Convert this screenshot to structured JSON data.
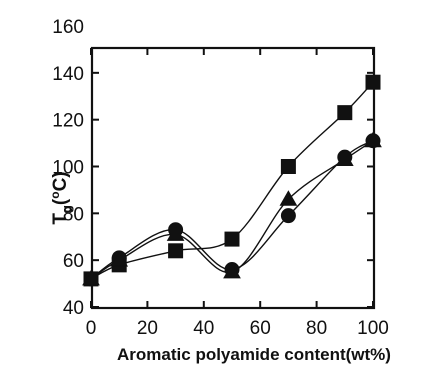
{
  "chart_data": {
    "type": "scatter",
    "xlabel": "Aromatic polyamide content(wt%)",
    "ylabel": {
      "main": "T",
      "sub": "g",
      "rest": "(",
      "sup": "o",
      "unit": "C)"
    },
    "xlim": [
      0,
      100
    ],
    "ylim": [
      40,
      160
    ],
    "xticks": [
      0,
      20,
      40,
      60,
      80,
      100
    ],
    "yticks": [
      40,
      60,
      80,
      100,
      120,
      140,
      160
    ],
    "grid": false,
    "legend": "none",
    "series": [
      {
        "marker": "square",
        "x": [
          0,
          10,
          30,
          50,
          70,
          90,
          100
        ],
        "y": [
          52,
          58,
          64,
          69,
          100,
          123,
          136
        ]
      },
      {
        "marker": "circle",
        "x": [
          0,
          10,
          30,
          50,
          70,
          90,
          100
        ],
        "y": [
          52,
          61,
          73,
          56,
          79,
          104,
          111
        ]
      },
      {
        "marker": "triangle",
        "x": [
          0,
          10,
          30,
          50,
          70,
          90,
          100
        ],
        "y": [
          52,
          60,
          71,
          55,
          86,
          103,
          111
        ]
      }
    ]
  }
}
